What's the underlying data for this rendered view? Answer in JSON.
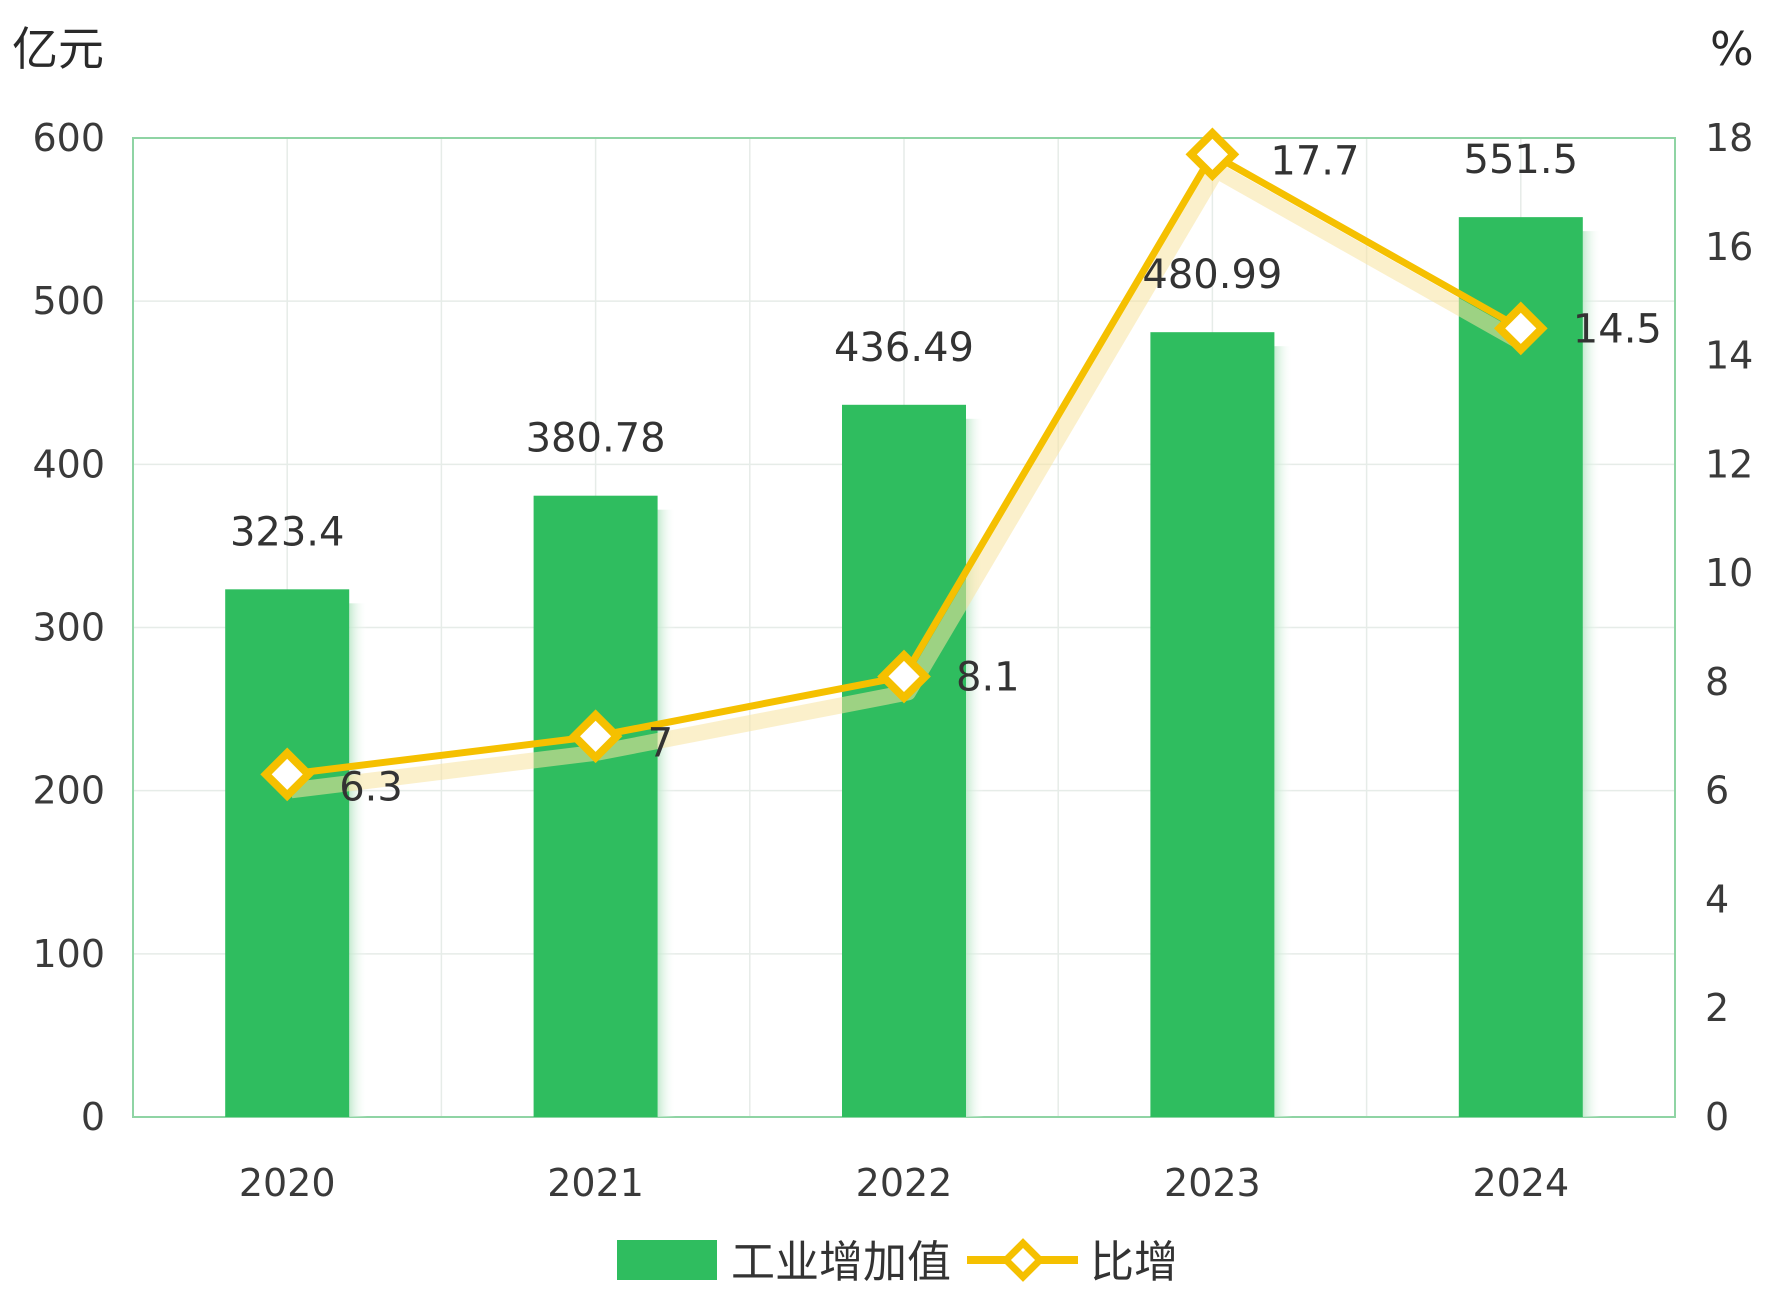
{
  "chart_data": {
    "type": "bar",
    "categories": [
      "2020",
      "2021",
      "2022",
      "2023",
      "2024"
    ],
    "left_axis": {
      "unit": "亿元",
      "ylim": [
        0,
        600
      ],
      "ticks": [
        "0",
        "100",
        "200",
        "300",
        "400",
        "500",
        "600"
      ]
    },
    "right_axis": {
      "unit": "%",
      "ylim": [
        0,
        18
      ],
      "ticks": [
        "0",
        "2",
        "4",
        "6",
        "8",
        "10",
        "12",
        "14",
        "16",
        "18"
      ]
    },
    "series": [
      {
        "name": "工业增加值",
        "type": "bar",
        "axis": "left",
        "color": "#2fbd5f",
        "values": [
          323.4,
          380.78,
          436.49,
          480.99,
          551.5
        ],
        "labels": [
          "323.4",
          "380.78",
          "436.49",
          "480.99",
          "551.5"
        ]
      },
      {
        "name": "比增",
        "type": "line",
        "axis": "right",
        "color": "#f5c000",
        "values": [
          6.3,
          7,
          8.1,
          17.7,
          14.5
        ],
        "labels": [
          "6.3",
          "7",
          "8.1",
          "17.7",
          "14.5"
        ]
      }
    ],
    "grid": true,
    "legend": "bottom-center"
  }
}
